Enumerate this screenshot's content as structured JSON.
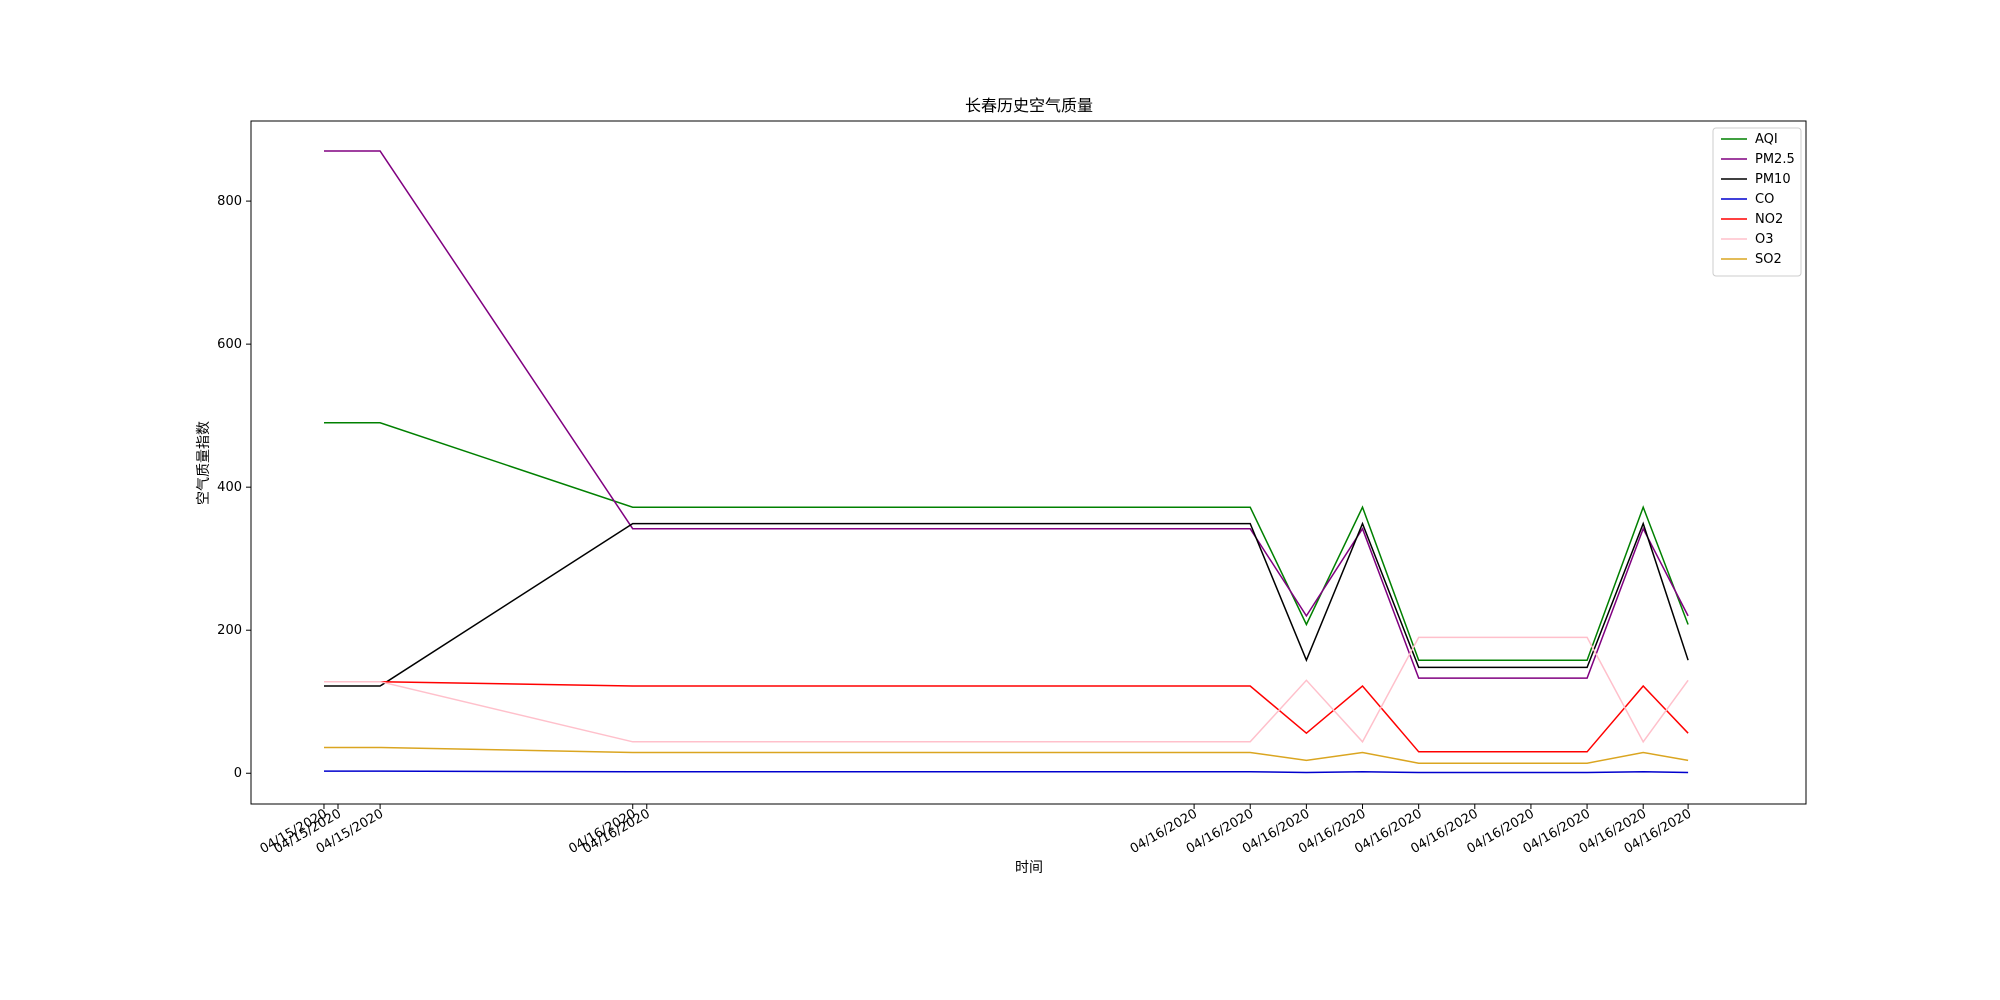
{
  "chart_data": {
    "type": "line",
    "title": "长春历史空气质量",
    "xlabel": "时间",
    "ylabel": "空气质量指数",
    "ylim": [
      -43,
      912
    ],
    "yticks": [
      0,
      200,
      400,
      600,
      800
    ],
    "grid": false,
    "legend_position": "top-right",
    "x_tick_labels": [
      "04/15/2020",
      "04/15/2020",
      "04/15/2020",
      "04/16/2020",
      "04/16/2020",
      "04/16/2020",
      "04/16/2020",
      "04/16/2020",
      "04/16/2020",
      "04/16/2020",
      "04/16/2020",
      "04/16/2020",
      "04/16/2020",
      "04/16/2020",
      "04/16/2020"
    ],
    "x_positions": [
      0,
      0.25,
      1,
      5.5,
      5.75,
      15.5,
      16.5,
      17.5,
      18.5,
      19.5,
      20.5,
      21.5,
      22.5,
      23.5,
      24.3
    ],
    "xlim": [
      -1.3,
      26.4
    ],
    "data_x_positions": [
      0,
      1,
      5.5,
      16.5,
      17.5,
      18.5,
      19.5,
      22.5,
      23.5,
      24.3
    ],
    "series": [
      {
        "name": "AQI",
        "color": "#008000",
        "values": [
          490,
          490,
          372,
          372,
          208,
          372,
          158,
          158,
          372,
          208
        ]
      },
      {
        "name": "PM2.5",
        "color": "#800080",
        "values": [
          870,
          870,
          342,
          342,
          220,
          342,
          133,
          133,
          342,
          220
        ]
      },
      {
        "name": "PM10",
        "color": "#000000",
        "values": [
          122,
          122,
          349,
          349,
          158,
          349,
          148,
          148,
          349,
          158
        ]
      },
      {
        "name": "CO",
        "color": "#0000cd",
        "values": [
          3,
          3,
          2,
          2,
          1,
          2,
          1,
          1,
          2,
          1
        ]
      },
      {
        "name": "NO2",
        "color": "#ff0000",
        "values": [
          128,
          128,
          122,
          122,
          56,
          122,
          30,
          30,
          122,
          56
        ]
      },
      {
        "name": "O3",
        "color": "#ffc0cb",
        "values": [
          128,
          128,
          44,
          44,
          130,
          44,
          190,
          190,
          44,
          130
        ]
      },
      {
        "name": "SO2",
        "color": "#daa520",
        "values": [
          36,
          36,
          29,
          29,
          18,
          29,
          14,
          14,
          29,
          18
        ]
      }
    ]
  }
}
